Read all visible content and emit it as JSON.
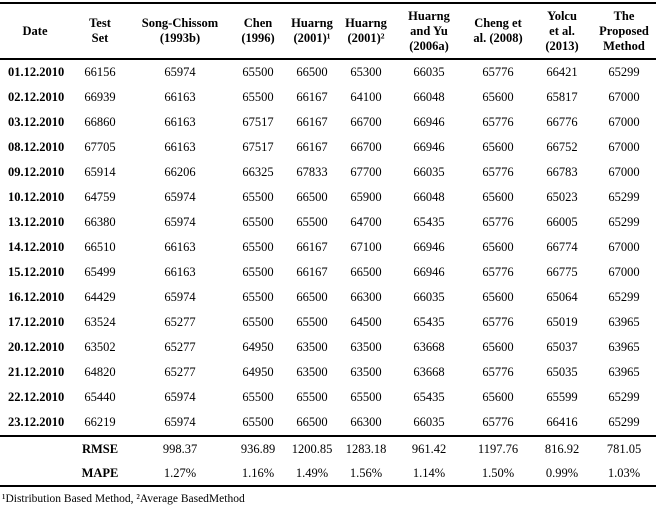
{
  "table": {
    "columns": [
      {
        "label": "Date"
      },
      {
        "label": "Test\nSet"
      },
      {
        "label": "Song-Chissom\n(1993b)"
      },
      {
        "label": "Chen\n(1996)"
      },
      {
        "label": "Huarng\n(2001)¹"
      },
      {
        "label": "Huarng\n(2001)²"
      },
      {
        "label": "Huarng\nand Yu\n(2006a)"
      },
      {
        "label": "Cheng et\nal. (2008)"
      },
      {
        "label": "Yolcu\net al.\n(2013)"
      },
      {
        "label": "The\nProposed\nMethod"
      }
    ],
    "rows": [
      {
        "date": "01.12.2010",
        "values": [
          66156,
          65974,
          65500,
          66500,
          65300,
          66035,
          65776,
          66421,
          65299
        ]
      },
      {
        "date": "02.12.2010",
        "values": [
          66939,
          66163,
          65500,
          66167,
          64100,
          66048,
          65600,
          65817,
          67000
        ]
      },
      {
        "date": "03.12.2010",
        "values": [
          66860,
          66163,
          67517,
          66167,
          66700,
          66946,
          65776,
          66776,
          67000
        ]
      },
      {
        "date": "08.12.2010",
        "values": [
          67705,
          66163,
          67517,
          66167,
          66700,
          66946,
          65600,
          66752,
          67000
        ]
      },
      {
        "date": "09.12.2010",
        "values": [
          65914,
          66206,
          66325,
          67833,
          67700,
          66035,
          65776,
          66783,
          67000
        ]
      },
      {
        "date": "10.12.2010",
        "values": [
          64759,
          65974,
          65500,
          66500,
          65900,
          66048,
          65600,
          65023,
          65299
        ]
      },
      {
        "date": "13.12.2010",
        "values": [
          66380,
          65974,
          65500,
          65500,
          64700,
          65435,
          65776,
          66005,
          65299
        ]
      },
      {
        "date": "14.12.2010",
        "values": [
          66510,
          66163,
          65500,
          66167,
          67100,
          66946,
          65600,
          66774,
          67000
        ]
      },
      {
        "date": "15.12.2010",
        "values": [
          65499,
          66163,
          65500,
          66167,
          66500,
          66946,
          65776,
          66775,
          67000
        ]
      },
      {
        "date": "16.12.2010",
        "values": [
          64429,
          65974,
          65500,
          66500,
          66300,
          66035,
          65600,
          65064,
          65299
        ]
      },
      {
        "date": "17.12.2010",
        "values": [
          63524,
          65277,
          65500,
          65500,
          64500,
          65435,
          65776,
          65019,
          63965
        ]
      },
      {
        "date": "20.12.2010",
        "values": [
          63502,
          65277,
          64950,
          63500,
          63500,
          63668,
          65600,
          65037,
          63965
        ]
      },
      {
        "date": "21.12.2010",
        "values": [
          64820,
          65277,
          64950,
          63500,
          63500,
          63668,
          65776,
          65035,
          63965
        ]
      },
      {
        "date": "22.12.2010",
        "values": [
          65440,
          65974,
          65500,
          65500,
          65500,
          65435,
          65600,
          65599,
          65299
        ]
      },
      {
        "date": "23.12.2010",
        "values": [
          66219,
          65974,
          65500,
          66500,
          66300,
          66035,
          65776,
          66416,
          65299
        ]
      }
    ],
    "summary": [
      {
        "label": "RMSE",
        "values": [
          "998.37",
          "936.89",
          "1200.85",
          "1283.18",
          "961.42",
          "1197.76",
          "816.92",
          "781.05"
        ]
      },
      {
        "label": "MAPE",
        "values": [
          "1.27%",
          "1.16%",
          "1.49%",
          "1.56%",
          "1.14%",
          "1.50%",
          "0.99%",
          "1.03%"
        ]
      }
    ]
  },
  "footnote": "¹Distribution Based Method, ²Average BasedMethod"
}
